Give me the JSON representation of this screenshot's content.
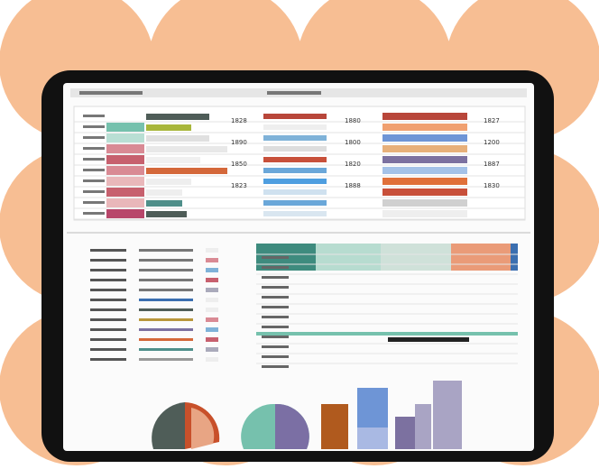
{
  "table": {
    "left_numbers": [
      "1828",
      "1890",
      "1850",
      "1823"
    ],
    "mid_numbers": [
      "1880",
      "1800",
      "1820",
      "1888"
    ],
    "right_numbers": [
      "1827",
      "1200",
      "1887",
      "1830"
    ]
  }
}
